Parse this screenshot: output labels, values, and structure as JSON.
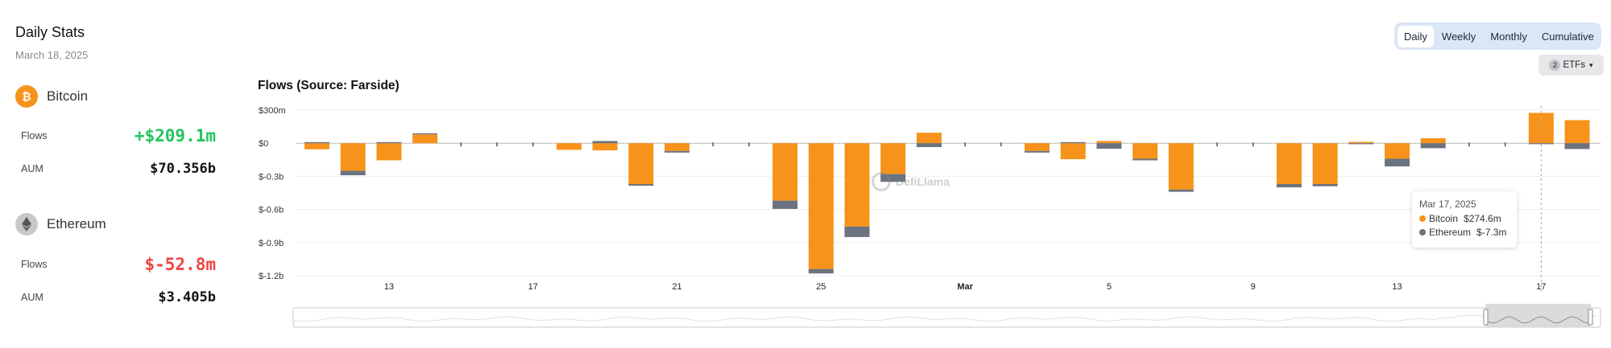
{
  "header": {
    "title": "Daily Stats",
    "date": "March 18, 2025"
  },
  "assets": [
    {
      "name": "Bitcoin",
      "icon": "bitcoin-icon",
      "color": "#f7931a",
      "flows_label": "Flows",
      "flows_value": "+$209.1m",
      "aum_label": "AUM",
      "aum_value": "$70.356b"
    },
    {
      "name": "Ethereum",
      "icon": "ethereum-icon",
      "color": "#6b7280",
      "flows_label": "Flows",
      "flows_value": "$-52.8m",
      "aum_label": "AUM",
      "aum_value": "$3.405b"
    }
  ],
  "tabs": [
    {
      "label": "Daily",
      "active": true
    },
    {
      "label": "Weekly",
      "active": false
    },
    {
      "label": "Monthly",
      "active": false
    },
    {
      "label": "Cumulative",
      "active": false
    }
  ],
  "etf_filter": {
    "count": "2",
    "label": "ETFs"
  },
  "watermark": "DefiLlama",
  "tooltip": {
    "date": "Mar 17, 2025",
    "rows": [
      {
        "name": "Bitcoin",
        "value": "$274.6m",
        "color": "#f7931a"
      },
      {
        "name": "Ethereum",
        "value": "$-7.3m",
        "color": "#6b7280"
      }
    ]
  },
  "chart_data": {
    "type": "bar",
    "title": "Flows (Source: Farside)",
    "stacked": true,
    "ylim": [
      -1.2,
      0.3
    ],
    "ytick_labels": [
      "$300m",
      "$0",
      "$-0.3b",
      "$-0.6b",
      "$-0.9b",
      "$-1.2b"
    ],
    "ytick_values": [
      0.3,
      0,
      -0.3,
      -0.6,
      -0.9,
      -1.2
    ],
    "xtick_labels": [
      {
        "label": "13",
        "date": "2025-02-13",
        "bold": false
      },
      {
        "label": "17",
        "date": "2025-02-17",
        "bold": false
      },
      {
        "label": "21",
        "date": "2025-02-21",
        "bold": false
      },
      {
        "label": "25",
        "date": "2025-02-25",
        "bold": false
      },
      {
        "label": "Mar",
        "date": "2025-03-01",
        "bold": true
      },
      {
        "label": "5",
        "date": "2025-03-05",
        "bold": false
      },
      {
        "label": "9",
        "date": "2025-03-09",
        "bold": false
      },
      {
        "label": "13",
        "date": "2025-03-13",
        "bold": false
      },
      {
        "label": "17",
        "date": "2025-03-17",
        "bold": false
      }
    ],
    "x": [
      "2025-02-11",
      "2025-02-12",
      "2025-02-13",
      "2025-02-14",
      "2025-02-15",
      "2025-02-16",
      "2025-02-17",
      "2025-02-18",
      "2025-02-19",
      "2025-02-20",
      "2025-02-21",
      "2025-02-22",
      "2025-02-23",
      "2025-02-24",
      "2025-02-25",
      "2025-02-26",
      "2025-02-27",
      "2025-02-28",
      "2025-03-01",
      "2025-03-02",
      "2025-03-03",
      "2025-03-04",
      "2025-03-05",
      "2025-03-06",
      "2025-03-07",
      "2025-03-08",
      "2025-03-09",
      "2025-03-10",
      "2025-03-11",
      "2025-03-12",
      "2025-03-13",
      "2025-03-14",
      "2025-03-15",
      "2025-03-16",
      "2025-03-17",
      "2025-03-18"
    ],
    "series": [
      {
        "name": "Bitcoin",
        "color": "#f7931a",
        "values": [
          -0.055,
          -0.25,
          -0.155,
          0.08,
          0,
          0,
          0,
          -0.06,
          -0.065,
          -0.37,
          -0.07,
          0,
          0,
          -0.52,
          -1.14,
          -0.755,
          -0.28,
          0.095,
          0,
          0,
          -0.07,
          -0.145,
          0.02,
          -0.14,
          -0.42,
          0,
          0,
          -0.37,
          -0.37,
          0.012,
          -0.14,
          0.045,
          0,
          0,
          0.2746,
          0.2091
        ]
      },
      {
        "name": "Ethereum",
        "color": "#6b7280",
        "values": [
          0.01,
          -0.04,
          0.01,
          0.01,
          0,
          0,
          0,
          0,
          0.02,
          -0.015,
          -0.015,
          0,
          0,
          -0.075,
          -0.04,
          -0.095,
          -0.07,
          -0.035,
          0,
          0,
          -0.015,
          0.01,
          -0.05,
          -0.015,
          -0.02,
          0,
          0,
          -0.03,
          -0.02,
          -0.005,
          -0.07,
          -0.045,
          0,
          0,
          -0.0073,
          -0.0528
        ]
      }
    ],
    "grid": true,
    "legend": "none"
  }
}
